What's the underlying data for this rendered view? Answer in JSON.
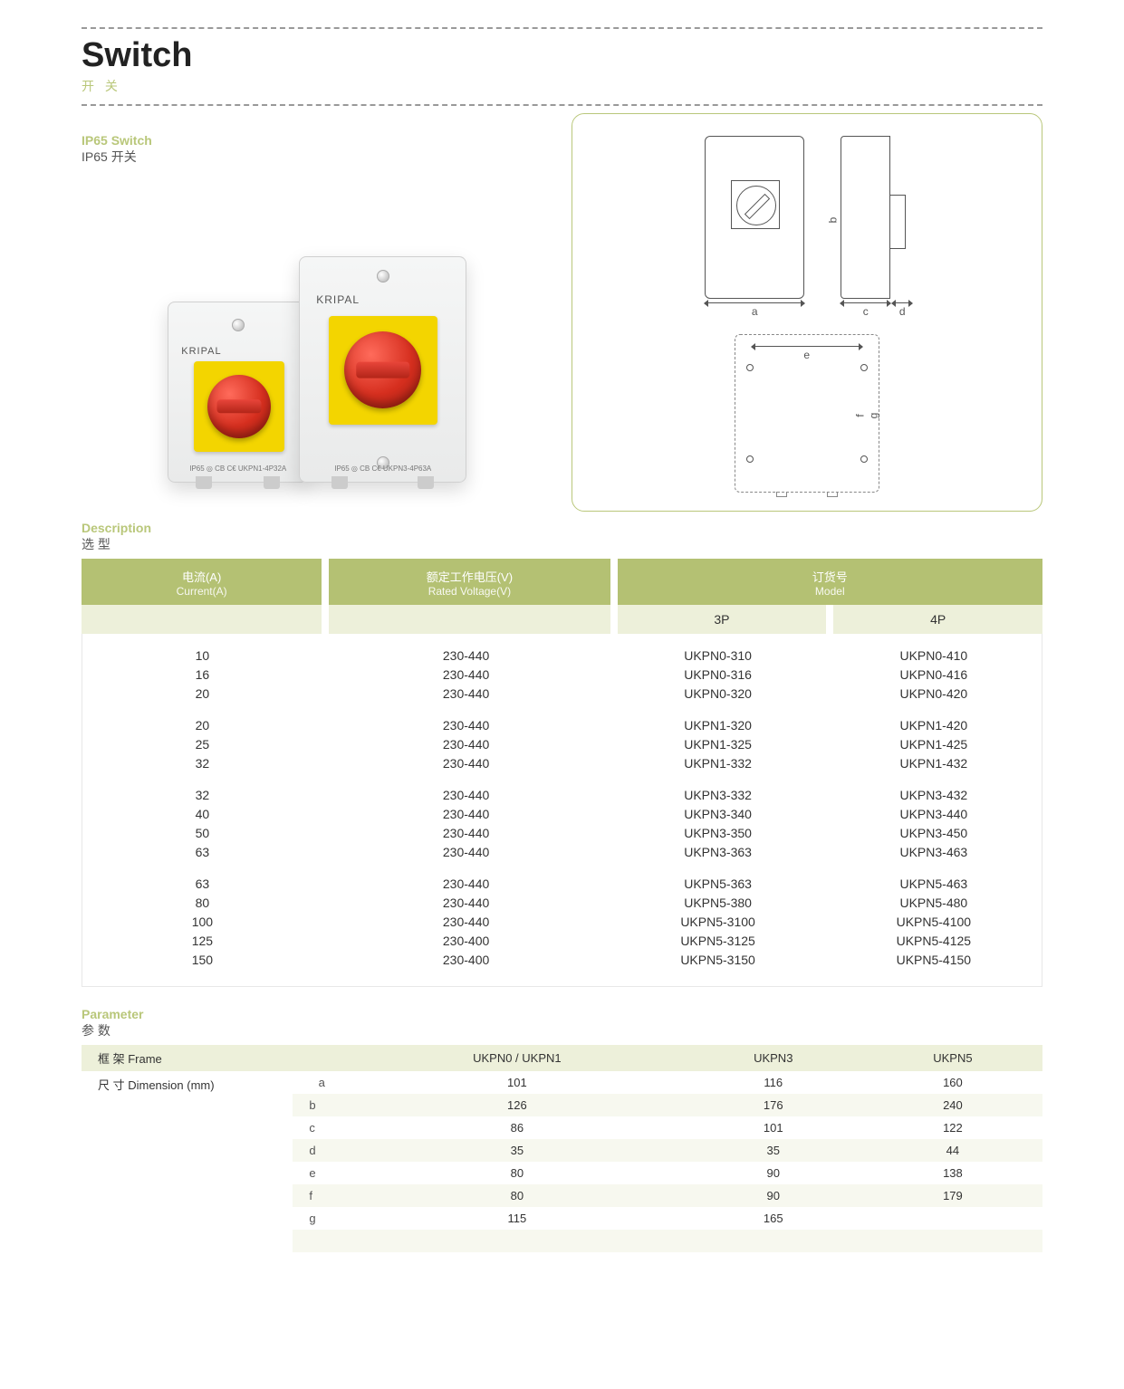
{
  "header": {
    "title_en": "Switch",
    "title_cn": "开 关"
  },
  "section_product": {
    "label_en": "IP65 Switch",
    "label_cn": "IP65 开关",
    "brand": "KRIPAL",
    "marks_small": "IP65 ◎ CB C€            UKPN1-4P32A",
    "marks_large": "IP65 ◎ CB C€            UKPN3-4P63A",
    "dim_a": "a",
    "dim_b": "b",
    "dim_c": "c",
    "dim_d": "d",
    "dim_e": "e",
    "dim_f": "f",
    "dim_g": "g"
  },
  "section_description": {
    "label_en": "Description",
    "label_cn": "选 型",
    "header": {
      "current_cn": "电流(A)",
      "current_en": "Current(A)",
      "voltage_cn": "额定工作电压(V)",
      "voltage_en": "Rated Voltage(V)",
      "model_cn": "订货号",
      "model_en": "Model",
      "p3": "3P",
      "p4": "4P"
    },
    "groups": [
      {
        "rows": [
          {
            "current": "10",
            "voltage": "230-440",
            "m3": "UKPN0-310",
            "m4": "UKPN0-410"
          },
          {
            "current": "16",
            "voltage": "230-440",
            "m3": "UKPN0-316",
            "m4": "UKPN0-416"
          },
          {
            "current": "20",
            "voltage": "230-440",
            "m3": "UKPN0-320",
            "m4": "UKPN0-420"
          }
        ]
      },
      {
        "rows": [
          {
            "current": "20",
            "voltage": "230-440",
            "m3": "UKPN1-320",
            "m4": "UKPN1-420"
          },
          {
            "current": "25",
            "voltage": "230-440",
            "m3": "UKPN1-325",
            "m4": "UKPN1-425"
          },
          {
            "current": "32",
            "voltage": "230-440",
            "m3": "UKPN1-332",
            "m4": "UKPN1-432"
          }
        ]
      },
      {
        "rows": [
          {
            "current": "32",
            "voltage": "230-440",
            "m3": "UKPN3-332",
            "m4": "UKPN3-432"
          },
          {
            "current": "40",
            "voltage": "230-440",
            "m3": "UKPN3-340",
            "m4": "UKPN3-440"
          },
          {
            "current": "50",
            "voltage": "230-440",
            "m3": "UKPN3-350",
            "m4": "UKPN3-450"
          },
          {
            "current": "63",
            "voltage": "230-440",
            "m3": "UKPN3-363",
            "m4": "UKPN3-463"
          }
        ]
      },
      {
        "rows": [
          {
            "current": "63",
            "voltage": "230-440",
            "m3": "UKPN5-363",
            "m4": "UKPN5-463"
          },
          {
            "current": "80",
            "voltage": "230-440",
            "m3": "UKPN5-380",
            "m4": "UKPN5-480"
          },
          {
            "current": "100",
            "voltage": "230-440",
            "m3": "UKPN5-3100",
            "m4": "UKPN5-4100"
          },
          {
            "current": "125",
            "voltage": "230-400",
            "m3": "UKPN5-3125",
            "m4": "UKPN5-4125"
          },
          {
            "current": "150",
            "voltage": "230-400",
            "m3": "UKPN5-3150",
            "m4": "UKPN5-4150"
          }
        ]
      }
    ]
  },
  "section_parameter": {
    "label_en": "Parameter",
    "label_cn": "参 数",
    "col_frame": "框 架 Frame",
    "col_dim": "尺 寸 Dimension (mm)",
    "col1": "UKPN0 / UKPN1",
    "col2": "UKPN3",
    "col3": "UKPN5",
    "rows": [
      {
        "k": "a",
        "v": [
          "101",
          "116",
          "160"
        ]
      },
      {
        "k": "b",
        "v": [
          "126",
          "176",
          "240"
        ]
      },
      {
        "k": "c",
        "v": [
          "86",
          "101",
          "122"
        ]
      },
      {
        "k": "d",
        "v": [
          "35",
          "35",
          "44"
        ]
      },
      {
        "k": "e",
        "v": [
          "80",
          "90",
          "138"
        ]
      },
      {
        "k": "f",
        "v": [
          "80",
          "90",
          "179"
        ]
      },
      {
        "k": "g",
        "v": [
          "115",
          "165",
          ""
        ]
      }
    ]
  },
  "colors": {
    "accent": "#b9c77a",
    "header_bg": "#b4c173",
    "stripe": "#edf0da",
    "knob_yellow": "#f3d500",
    "knob_red": "#d62f1f"
  }
}
